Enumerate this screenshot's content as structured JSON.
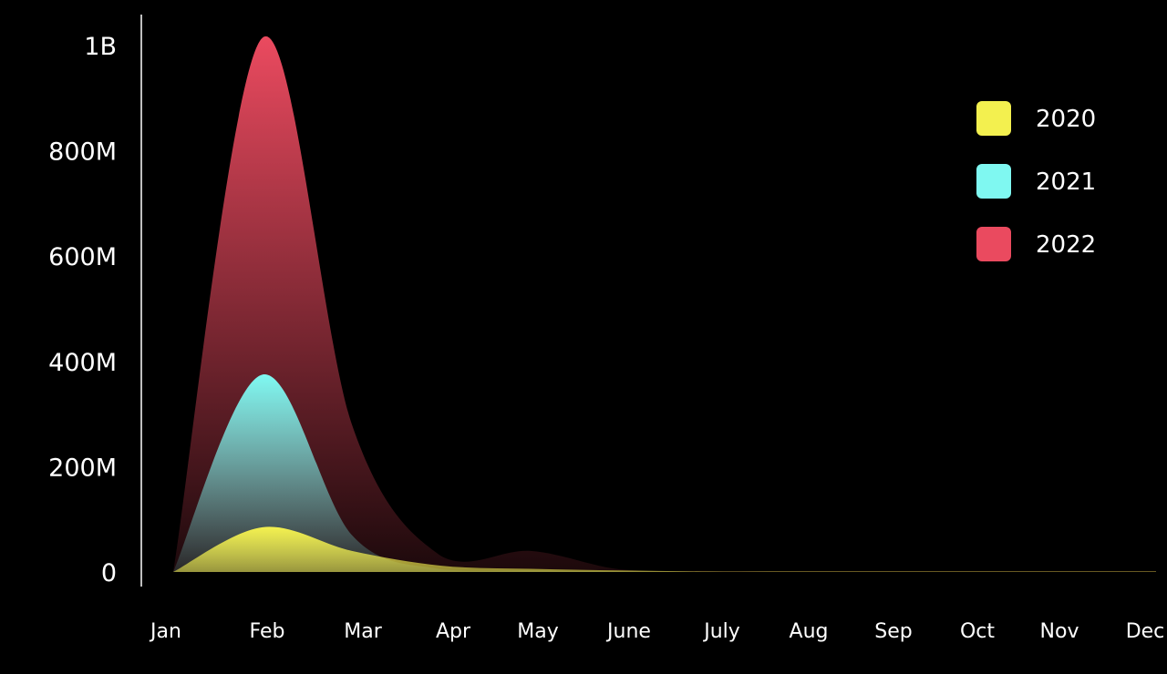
{
  "chart_data": {
    "type": "area",
    "title": "",
    "xlabel": "",
    "ylabel": "",
    "categories": [
      "Jan",
      "Feb",
      "Mar",
      "Apr",
      "May",
      "June",
      "July",
      "Aug",
      "Sep",
      "Oct",
      "Nov",
      "Dec"
    ],
    "ylim": [
      0,
      1000000000
    ],
    "y_ticks": [
      {
        "value": 0,
        "label": "0"
      },
      {
        "value": 200000000,
        "label": "200M"
      },
      {
        "value": 400000000,
        "label": "400M"
      },
      {
        "value": 600000000,
        "label": "600M"
      },
      {
        "value": 800000000,
        "label": "800M"
      },
      {
        "value": 1000000000,
        "label": "1B"
      }
    ],
    "grid": false,
    "legend_position": "top-right",
    "series": [
      {
        "name": "2022",
        "color": "#ea4a5f",
        "values": [
          0,
          1015000000,
          280000000,
          30000000,
          40000000,
          5000000,
          2000000,
          2000000,
          2000000,
          2000000,
          2000000,
          2000000
        ]
      },
      {
        "name": "2021",
        "color": "#7ff8f1",
        "values": [
          0,
          375000000,
          70000000,
          5000000,
          3000000,
          1000000,
          0,
          0,
          0,
          0,
          0,
          0
        ]
      },
      {
        "name": "2020",
        "color": "#f3f04f",
        "values": [
          0,
          85000000,
          40000000,
          12000000,
          6000000,
          3000000,
          1000000,
          1000000,
          1000000,
          1000000,
          1000000,
          1000000
        ]
      }
    ]
  }
}
